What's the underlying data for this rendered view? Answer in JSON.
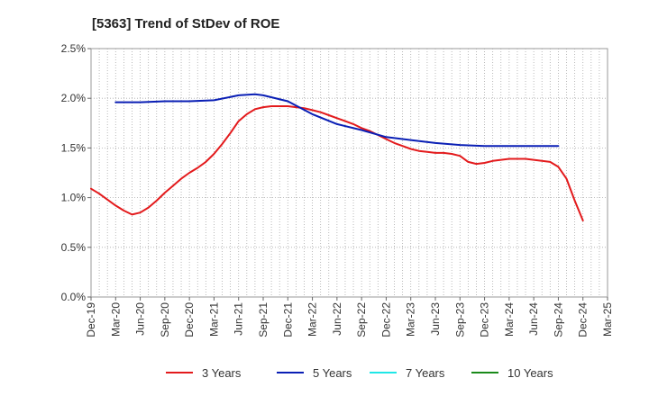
{
  "chart_data": {
    "type": "line",
    "title": "[5363]  Trend of StDev of ROE",
    "xlabel": "",
    "ylabel": "",
    "x_ticks": [
      "Dec-19",
      "Mar-20",
      "Jun-20",
      "Sep-20",
      "Dec-20",
      "Mar-21",
      "Jun-21",
      "Sep-21",
      "Dec-21",
      "Mar-22",
      "Jun-22",
      "Sep-22",
      "Dec-22",
      "Mar-23",
      "Jun-23",
      "Sep-23",
      "Dec-23",
      "Mar-24",
      "Jun-24",
      "Sep-24",
      "Dec-24",
      "Mar-25"
    ],
    "y_ticks": [
      "0.0%",
      "0.5%",
      "1.0%",
      "1.5%",
      "2.0%",
      "2.5%"
    ],
    "ylim": [
      0,
      2.5
    ],
    "y_unit": "%",
    "grid": true,
    "legend_position": "bottom",
    "series": [
      {
        "name": "3 Years",
        "color": "#e31a1c",
        "points": [
          [
            "Dec-19",
            1.09
          ],
          [
            "Jan-20",
            1.04
          ],
          [
            "Feb-20",
            0.98
          ],
          [
            "Mar-20",
            0.92
          ],
          [
            "Apr-20",
            0.87
          ],
          [
            "May-20",
            0.83
          ],
          [
            "Jun-20",
            0.85
          ],
          [
            "Jul-20",
            0.9
          ],
          [
            "Aug-20",
            0.97
          ],
          [
            "Sep-20",
            1.05
          ],
          [
            "Oct-20",
            1.12
          ],
          [
            "Nov-20",
            1.19
          ],
          [
            "Dec-20",
            1.25
          ],
          [
            "Jan-21",
            1.3
          ],
          [
            "Feb-21",
            1.36
          ],
          [
            "Mar-21",
            1.44
          ],
          [
            "Apr-21",
            1.54
          ],
          [
            "May-21",
            1.65
          ],
          [
            "Jun-21",
            1.77
          ],
          [
            "Jul-21",
            1.84
          ],
          [
            "Aug-21",
            1.89
          ],
          [
            "Sep-21",
            1.91
          ],
          [
            "Oct-21",
            1.92
          ],
          [
            "Nov-21",
            1.92
          ],
          [
            "Dec-21",
            1.92
          ],
          [
            "Jan-22",
            1.91
          ],
          [
            "Feb-22",
            1.9
          ],
          [
            "Mar-22",
            1.88
          ],
          [
            "Apr-22",
            1.86
          ],
          [
            "May-22",
            1.83
          ],
          [
            "Jun-22",
            1.8
          ],
          [
            "Jul-22",
            1.77
          ],
          [
            "Aug-22",
            1.74
          ],
          [
            "Sep-22",
            1.7
          ],
          [
            "Oct-22",
            1.67
          ],
          [
            "Nov-22",
            1.63
          ],
          [
            "Dec-22",
            1.59
          ],
          [
            "Jan-23",
            1.55
          ],
          [
            "Feb-23",
            1.52
          ],
          [
            "Mar-23",
            1.49
          ],
          [
            "Apr-23",
            1.47
          ],
          [
            "May-23",
            1.46
          ],
          [
            "Jun-23",
            1.45
          ],
          [
            "Jul-23",
            1.45
          ],
          [
            "Aug-23",
            1.44
          ],
          [
            "Sep-23",
            1.42
          ],
          [
            "Oct-23",
            1.36
          ],
          [
            "Nov-23",
            1.34
          ],
          [
            "Dec-23",
            1.35
          ],
          [
            "Jan-24",
            1.37
          ],
          [
            "Feb-24",
            1.38
          ],
          [
            "Mar-24",
            1.39
          ],
          [
            "Apr-24",
            1.39
          ],
          [
            "May-24",
            1.39
          ],
          [
            "Jun-24",
            1.38
          ],
          [
            "Jul-24",
            1.37
          ],
          [
            "Aug-24",
            1.36
          ],
          [
            "Sep-24",
            1.31
          ],
          [
            "Oct-24",
            1.19
          ],
          [
            "Nov-24",
            0.97
          ],
          [
            "Dec-24",
            0.77
          ]
        ]
      },
      {
        "name": "5 Years",
        "color": "#0a1fb5",
        "points": [
          [
            "Mar-20",
            1.96
          ],
          [
            "Jun-20",
            1.96
          ],
          [
            "Sep-20",
            1.97
          ],
          [
            "Dec-20",
            1.97
          ],
          [
            "Mar-21",
            1.98
          ],
          [
            "Jun-21",
            2.03
          ],
          [
            "Aug-21",
            2.04
          ],
          [
            "Sep-21",
            2.03
          ],
          [
            "Dec-21",
            1.97
          ],
          [
            "Mar-22",
            1.84
          ],
          [
            "Jun-22",
            1.74
          ],
          [
            "Sep-22",
            1.68
          ],
          [
            "Dec-22",
            1.61
          ],
          [
            "Mar-23",
            1.58
          ],
          [
            "Jun-23",
            1.55
          ],
          [
            "Sep-23",
            1.53
          ],
          [
            "Dec-23",
            1.52
          ],
          [
            "Mar-24",
            1.52
          ],
          [
            "Jun-24",
            1.52
          ],
          [
            "Sep-24",
            1.52
          ]
        ]
      },
      {
        "name": "7 Years",
        "color": "#1fe7e7",
        "points": []
      },
      {
        "name": "10 Years",
        "color": "#1a8a1a",
        "points": []
      }
    ]
  }
}
